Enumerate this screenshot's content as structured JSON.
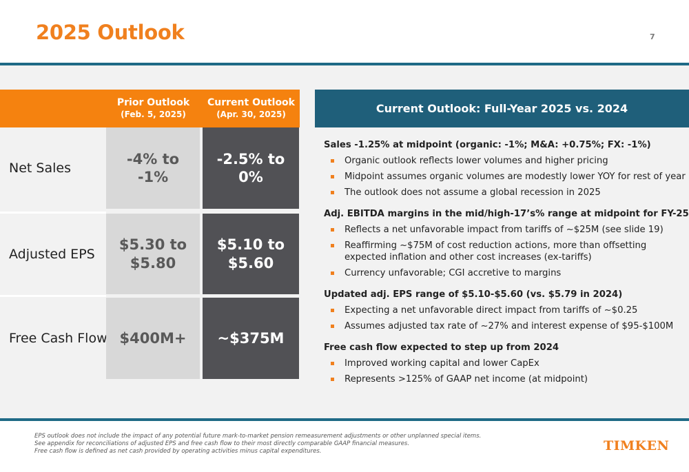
{
  "title": "2025 Outlook",
  "page_number": "7",
  "table": {
    "headers": {
      "prior_line1": "Prior Outlook",
      "prior_line2": "(Feb. 5, 2025)",
      "current_line1": "Current Outlook",
      "current_line2": "(Apr. 30, 2025)"
    },
    "rows": [
      {
        "label": "Net Sales",
        "prior_l1": "-4% to",
        "prior_l2": "-1%",
        "current_l1": "-2.5% to",
        "current_l2": "0%"
      },
      {
        "label": "Adjusted EPS",
        "prior_l1": "$5.30 to",
        "prior_l2": "$5.80",
        "current_l1": "$5.10 to",
        "current_l2": "$5.60"
      },
      {
        "label": "Free Cash Flow",
        "prior_l1": "$400M+",
        "current_l1": "~$375M"
      }
    ]
  },
  "panel": {
    "header": "Current Outlook: Full-Year 2025 vs. 2024",
    "sections": [
      {
        "heading": "Sales -1.25% at midpoint (organic: -1%; M&A: +0.75%; FX: -1%)",
        "bullets": [
          "Organic outlook reflects lower volumes and higher pricing",
          "Midpoint assumes organic volumes are modestly lower YOY for rest of year",
          "The outlook does not assume a global recession in 2025"
        ]
      },
      {
        "heading": "Adj. EBITDA margins in the mid/high-17’s% range at midpoint for FY-25",
        "bullets": [
          "Reflects a net unfavorable impact from tariffs of ~$25M (see slide 19)",
          "Reaffirming ~$75M of cost reduction actions, more than offsetting expected inflation and other cost increases (ex-tariffs)",
          "Currency unfavorable; CGI accretive to margins"
        ]
      },
      {
        "heading": "Updated adj. EPS range of $5.10-$5.60 (vs. $5.79 in 2024)",
        "bullets": [
          "Expecting a net unfavorable direct impact from tariffs of ~$0.25",
          "Assumes adjusted tax rate of ~27% and interest expense of $95-$100M"
        ]
      },
      {
        "heading": "Free cash flow expected to step up from 2024",
        "bullets": [
          "Improved working capital and lower CapEx",
          "Represents >125% of GAAP net income (at midpoint)"
        ]
      }
    ]
  },
  "footnotes": [
    "EPS outlook does not include the impact of any potential future mark-to-market pension remeasurement adjustments or other unplanned special items.",
    "See appendix for reconciliations of adjusted EPS and free cash flow to their most directly comparable GAAP financial measures.",
    "Free cash flow is defined as net cash provided by operating activities minus capital expenditures."
  ],
  "logo_text": "TIMKEN",
  "colors": {
    "accent": "#f0801e",
    "header_orange": "#f5820f",
    "teal": "#1f5f7a",
    "dark_cell": "#515155",
    "light_cell": "#d8d8d8"
  }
}
